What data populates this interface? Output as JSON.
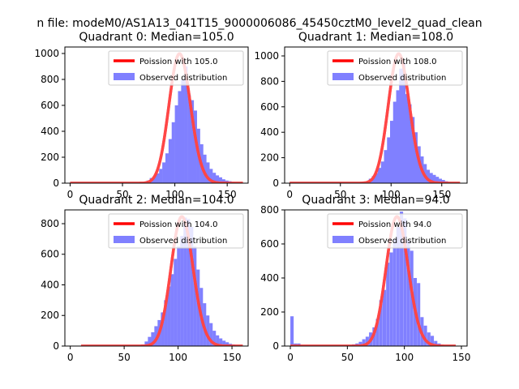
{
  "suptitle": "n file: modeM0/AS1A13_041T15_9000006086_45450cztM0_level2_quad_clean",
  "colors": {
    "observed_fill": "#8080ff",
    "poisson_line": "#ff0000",
    "axis": "#000000",
    "background": "#ffffff"
  },
  "chart_data": [
    {
      "type": "bar",
      "title": "Quadrant 0: Median=105.0",
      "xlim": [
        -5,
        170
      ],
      "ylim": [
        0,
        1050
      ],
      "xticks": [
        0,
        50,
        100,
        150
      ],
      "yticks": [
        0,
        200,
        400,
        600,
        800,
        1000
      ],
      "show_xtick_labels": true,
      "legend": {
        "position": "top-right",
        "poisson_label": "Poission with 105.0",
        "observed_label": "Observed distribution"
      },
      "poisson_mean": 105.0,
      "poisson_range": [
        0,
        165
      ],
      "observed": {
        "bin_width": 3.2,
        "bins": [
          [
            70,
            6
          ],
          [
            73,
            20
          ],
          [
            76,
            40
          ],
          [
            79,
            55
          ],
          [
            82,
            75
          ],
          [
            85,
            110
          ],
          [
            88,
            160
          ],
          [
            91,
            230
          ],
          [
            94,
            340
          ],
          [
            97,
            470
          ],
          [
            100,
            600
          ],
          [
            103,
            710
          ],
          [
            106,
            800
          ],
          [
            109,
            900
          ],
          [
            112,
            680
          ],
          [
            115,
            640
          ],
          [
            118,
            560
          ],
          [
            121,
            420
          ],
          [
            124,
            300
          ],
          [
            127,
            220
          ],
          [
            130,
            160
          ],
          [
            133,
            110
          ],
          [
            136,
            80
          ],
          [
            139,
            60
          ],
          [
            142,
            45
          ],
          [
            145,
            30
          ],
          [
            148,
            20
          ],
          [
            151,
            15
          ],
          [
            154,
            10
          ],
          [
            157,
            6
          ]
        ]
      }
    },
    {
      "type": "bar",
      "title": "Quadrant 1: Median=108.0",
      "xlim": [
        -5,
        175
      ],
      "ylim": [
        0,
        1070
      ],
      "xticks": [
        0,
        50,
        100,
        150
      ],
      "yticks": [
        0,
        200,
        400,
        600,
        800,
        1000
      ],
      "show_xtick_labels": true,
      "legend": {
        "position": "top-right",
        "poisson_label": "Poission with 108.0",
        "observed_label": "Observed distribution"
      },
      "poisson_mean": 108.0,
      "poisson_range": [
        0,
        168
      ],
      "observed": {
        "bin_width": 3.2,
        "bins": [
          [
            72,
            5
          ],
          [
            75,
            15
          ],
          [
            78,
            35
          ],
          [
            81,
            55
          ],
          [
            84,
            80
          ],
          [
            87,
            120
          ],
          [
            90,
            170
          ],
          [
            93,
            260
          ],
          [
            96,
            360
          ],
          [
            99,
            490
          ],
          [
            102,
            640
          ],
          [
            105,
            730
          ],
          [
            108,
            900
          ],
          [
            111,
            950
          ],
          [
            114,
            700
          ],
          [
            117,
            620
          ],
          [
            120,
            520
          ],
          [
            123,
            400
          ],
          [
            126,
            290
          ],
          [
            129,
            210
          ],
          [
            132,
            150
          ],
          [
            135,
            105
          ],
          [
            138,
            80
          ],
          [
            141,
            65
          ],
          [
            144,
            50
          ],
          [
            147,
            35
          ],
          [
            150,
            25
          ],
          [
            153,
            15
          ],
          [
            156,
            10
          ],
          [
            159,
            5
          ]
        ]
      }
    },
    {
      "type": "bar",
      "title": "Quadrant 2: Median=104.0",
      "xlim": [
        -5,
        165
      ],
      "ylim": [
        0,
        890
      ],
      "xticks": [
        0,
        50,
        100,
        150
      ],
      "yticks": [
        0,
        200,
        400,
        600,
        800
      ],
      "show_xtick_labels": true,
      "legend": {
        "position": "top-right",
        "poisson_label": "Poission with 104.0",
        "observed_label": "Observed distribution"
      },
      "poisson_mean": 104.0,
      "poisson_range": [
        10,
        160
      ],
      "observed": {
        "bin_width": 3.1,
        "bins": [
          [
            66,
            10
          ],
          [
            69,
            30
          ],
          [
            72,
            60
          ],
          [
            75,
            90
          ],
          [
            78,
            130
          ],
          [
            81,
            170
          ],
          [
            84,
            220
          ],
          [
            87,
            300
          ],
          [
            90,
            390
          ],
          [
            93,
            470
          ],
          [
            96,
            570
          ],
          [
            99,
            650
          ],
          [
            102,
            720
          ],
          [
            105,
            840
          ],
          [
            108,
            830
          ],
          [
            111,
            780
          ],
          [
            114,
            650
          ],
          [
            117,
            500
          ],
          [
            120,
            380
          ],
          [
            123,
            280
          ],
          [
            126,
            200
          ],
          [
            129,
            150
          ],
          [
            132,
            100
          ],
          [
            135,
            70
          ],
          [
            138,
            50
          ],
          [
            141,
            35
          ],
          [
            144,
            25
          ],
          [
            147,
            15
          ],
          [
            150,
            10
          ],
          [
            153,
            5
          ]
        ]
      }
    },
    {
      "type": "bar",
      "title": "Quadrant 3: Median=94.0",
      "xlim": [
        -5,
        155
      ],
      "ylim": [
        0,
        800
      ],
      "xticks": [
        0,
        50,
        100,
        150
      ],
      "yticks": [
        0,
        200,
        400,
        600,
        800
      ],
      "show_xtick_labels": true,
      "legend": {
        "position": "top-right",
        "poisson_label": "Poission with 94.0",
        "observed_label": "Observed distribution"
      },
      "poisson_mean": 94.0,
      "poisson_range": [
        0,
        145
      ],
      "observed": {
        "bin_width": 2.9,
        "bins": [
          [
            0,
            175
          ],
          [
            3,
            15
          ],
          [
            6,
            15
          ],
          [
            9,
            5
          ],
          [
            12,
            3
          ],
          [
            15,
            2
          ],
          [
            42,
            2
          ],
          [
            48,
            5
          ],
          [
            54,
            10
          ],
          [
            57,
            15
          ],
          [
            60,
            25
          ],
          [
            63,
            40
          ],
          [
            66,
            55
          ],
          [
            69,
            80
          ],
          [
            72,
            110
          ],
          [
            75,
            160
          ],
          [
            78,
            270
          ],
          [
            81,
            330
          ],
          [
            84,
            490
          ],
          [
            87,
            550
          ],
          [
            90,
            630
          ],
          [
            93,
            700
          ],
          [
            96,
            790
          ],
          [
            99,
            750
          ],
          [
            102,
            620
          ],
          [
            105,
            560
          ],
          [
            108,
            400
          ],
          [
            111,
            370
          ],
          [
            114,
            170
          ],
          [
            117,
            120
          ],
          [
            120,
            80
          ],
          [
            123,
            60
          ],
          [
            126,
            30
          ],
          [
            129,
            15
          ]
        ]
      }
    }
  ]
}
